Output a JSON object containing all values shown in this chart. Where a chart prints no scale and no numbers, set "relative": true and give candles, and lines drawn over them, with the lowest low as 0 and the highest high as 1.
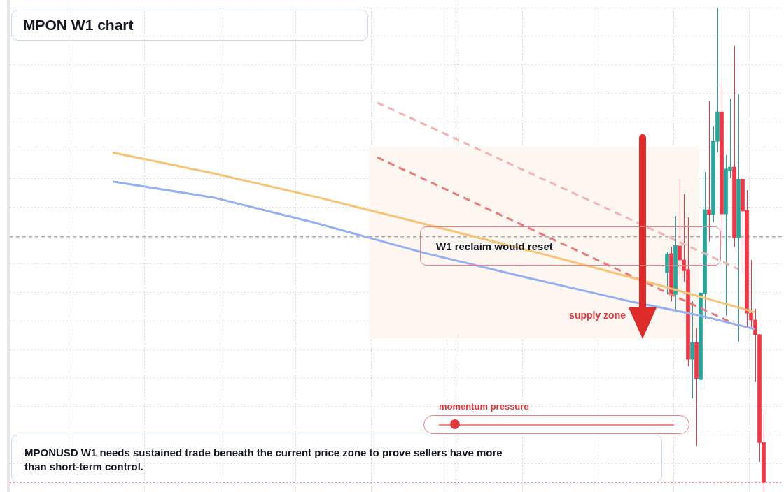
{
  "chart_data": {
    "type": "candlestick",
    "title": "MPON W1 chart",
    "relative": true,
    "grid": true,
    "legend": false,
    "annotations": [
      "W1 reclaim would reset",
      "momentum pressure",
      "MPONUSD W1 needs sustained trade beneath the current price zone to prove sellers have more than short-term control."
    ],
    "categories": [
      null,
      null,
      null,
      null,
      null,
      null,
      null,
      null,
      null,
      null,
      null,
      null,
      null,
      null,
      null,
      null,
      null,
      null,
      null,
      null,
      null,
      null,
      null,
      null,
      null,
      null,
      null,
      null,
      null,
      null,
      null,
      null,
      null,
      null,
      null,
      null,
      null,
      null,
      null,
      null,
      null,
      null,
      null,
      null,
      null,
      null,
      null,
      null,
      null,
      null,
      null,
      null,
      null,
      null,
      null,
      null,
      null,
      null,
      null,
      null,
      null,
      null,
      null,
      null,
      null,
      null,
      null,
      null,
      null,
      null,
      null,
      null,
      null,
      null,
      null,
      null,
      null,
      null,
      null,
      null,
      null,
      null,
      null,
      null,
      null,
      null,
      null,
      null,
      null,
      null,
      null,
      null,
      null,
      null,
      null,
      null,
      null,
      null,
      null,
      null,
      null,
      null,
      null,
      null,
      null,
      null,
      null,
      null,
      null,
      null,
      null,
      null,
      null,
      null,
      null,
      null,
      null,
      null,
      null,
      null,
      null,
      null,
      null,
      null,
      null,
      null,
      null,
      null,
      null,
      null,
      null,
      null,
      null,
      null,
      null,
      null,
      null,
      null,
      null,
      null,
      null,
      null,
      null,
      null,
      null,
      null,
      null,
      null,
      null,
      null,
      null,
      null,
      null,
      null,
      null,
      null,
      null,
      null,
      null,
      null,
      null,
      null,
      null,
      null,
      null,
      null,
      null,
      null,
      null,
      null,
      null,
      null,
      null,
      null,
      null,
      null,
      null,
      null,
      null,
      null,
      null,
      null,
      null,
      null
    ],
    "bands": [
      {
        "axis": "y",
        "from": 0.317,
        "to": 0.712,
        "label": "supply zone",
        "color": "#fdf6f1"
      }
    ],
    "ref_lines": [
      {
        "axis": "y",
        "value": 0.527,
        "color": "#8a8a8a",
        "line_style": "dashed"
      },
      {
        "axis": "y",
        "value": 0.02,
        "color": "#f23645",
        "line_style": "dotted"
      }
    ],
    "series": [
      {
        "type": "line",
        "color": "#f7c477",
        "values": [
          null,
          null,
          null,
          null,
          null,
          null,
          null,
          null,
          null,
          null,
          null,
          null,
          null,
          null,
          null,
          null,
          null,
          null,
          null,
          null,
          null,
          null,
          null,
          null,
          0.701,
          null,
          null,
          null,
          null,
          null,
          null,
          null,
          null,
          null,
          null,
          null,
          null,
          null,
          null,
          null,
          null,
          null,
          null,
          null,
          null,
          null,
          null,
          null,
          0.658,
          null,
          null,
          null,
          null,
          null,
          null,
          null,
          null,
          null,
          null,
          null,
          null,
          null,
          null,
          null,
          null,
          null,
          null,
          null,
          null,
          null,
          null,
          null,
          null,
          0.608,
          null,
          null,
          null,
          null,
          null,
          null,
          null,
          null,
          null,
          null,
          null,
          null,
          null,
          null,
          null,
          null,
          null,
          null,
          null,
          null,
          null,
          null,
          null,
          null,
          0.554,
          null,
          null,
          null,
          null,
          null,
          null,
          null,
          null,
          null,
          null,
          null,
          null,
          null,
          null,
          null,
          null,
          null,
          null,
          null,
          null,
          null,
          null,
          null,
          null,
          0.499,
          null,
          null,
          null,
          null,
          null,
          null,
          null,
          null,
          null,
          null,
          null,
          null,
          null,
          null,
          null,
          null,
          null,
          null,
          null,
          null,
          null,
          null,
          null,
          null,
          0.442,
          null,
          null,
          null,
          null,
          null,
          null,
          null,
          null,
          null,
          null,
          null,
          null,
          null,
          null,
          null,
          0.403,
          null,
          null,
          null,
          null,
          null,
          null,
          null,
          null,
          null,
          null,
          null,
          null,
          0.371,
          null,
          null,
          null,
          null,
          null,
          null
        ]
      },
      {
        "type": "line",
        "color": "#94b0f3",
        "values": [
          null,
          null,
          null,
          null,
          null,
          null,
          null,
          null,
          null,
          null,
          null,
          null,
          null,
          null,
          null,
          null,
          null,
          null,
          null,
          null,
          null,
          null,
          null,
          null,
          0.641,
          null,
          null,
          null,
          null,
          null,
          null,
          null,
          null,
          null,
          null,
          null,
          null,
          null,
          null,
          null,
          null,
          null,
          null,
          null,
          null,
          null,
          null,
          null,
          0.608,
          null,
          null,
          null,
          null,
          null,
          null,
          null,
          null,
          null,
          null,
          null,
          null,
          null,
          null,
          null,
          null,
          null,
          null,
          null,
          null,
          null,
          null,
          null,
          null,
          0.554,
          null,
          null,
          null,
          null,
          null,
          null,
          null,
          null,
          null,
          null,
          null,
          null,
          null,
          null,
          null,
          null,
          null,
          null,
          null,
          null,
          null,
          null,
          null,
          null,
          0.494,
          null,
          null,
          null,
          null,
          null,
          null,
          null,
          null,
          null,
          null,
          null,
          null,
          null,
          null,
          null,
          null,
          null,
          null,
          null,
          null,
          null,
          null,
          null,
          null,
          0.442,
          null,
          null,
          null,
          null,
          null,
          null,
          null,
          null,
          null,
          null,
          null,
          null,
          null,
          null,
          null,
          null,
          null,
          null,
          null,
          null,
          null,
          null,
          null,
          null,
          0.392,
          null,
          null,
          null,
          null,
          null,
          null,
          null,
          null,
          null,
          null,
          null,
          null,
          null,
          null,
          null,
          0.364,
          null,
          null,
          null,
          null,
          null,
          null,
          null,
          null,
          null,
          null,
          null,
          null,
          0.336,
          null,
          null,
          null,
          null,
          null,
          null
        ]
      },
      {
        "type": "line",
        "color": "#f4b3b3",
        "line_style": "dashed",
        "values": [
          null,
          null,
          null,
          null,
          null,
          null,
          null,
          null,
          null,
          null,
          null,
          null,
          null,
          null,
          null,
          null,
          null,
          null,
          null,
          null,
          null,
          null,
          null,
          null,
          null,
          null,
          null,
          null,
          null,
          null,
          null,
          null,
          null,
          null,
          null,
          null,
          null,
          null,
          null,
          null,
          null,
          null,
          null,
          null,
          null,
          null,
          null,
          null,
          null,
          null,
          null,
          null,
          null,
          null,
          null,
          null,
          null,
          null,
          null,
          null,
          null,
          null,
          null,
          null,
          null,
          null,
          null,
          null,
          null,
          null,
          null,
          null,
          null,
          null,
          null,
          null,
          null,
          null,
          null,
          null,
          null,
          null,
          null,
          null,
          null,
          null,
          null,
          0.804,
          null,
          null,
          null,
          null,
          null,
          null,
          null,
          null,
          null,
          null,
          null,
          null,
          null,
          null,
          null,
          null,
          null,
          null,
          null,
          null,
          null,
          null,
          null,
          null,
          null,
          null,
          null,
          null,
          null,
          null,
          null,
          null,
          null,
          null,
          null,
          null,
          null,
          null,
          null,
          null,
          null,
          null,
          null,
          null,
          null,
          null,
          null,
          null,
          null,
          null,
          null,
          null,
          null,
          null,
          null,
          null,
          null,
          null,
          null,
          null,
          null,
          null,
          null,
          null,
          null,
          null,
          null,
          null,
          null,
          null,
          null,
          null,
          null,
          null,
          null,
          null,
          null,
          null,
          null,
          null,
          null,
          null,
          null,
          null,
          null,
          0.46,
          null,
          null,
          null,
          null,
          null,
          null,
          null,
          null,
          null,
          null
        ]
      },
      {
        "type": "line",
        "color": "#e97b7c",
        "line_style": "dashed",
        "values": [
          null,
          null,
          null,
          null,
          null,
          null,
          null,
          null,
          null,
          null,
          null,
          null,
          null,
          null,
          null,
          null,
          null,
          null,
          null,
          null,
          null,
          null,
          null,
          null,
          null,
          null,
          null,
          null,
          null,
          null,
          null,
          null,
          null,
          null,
          null,
          null,
          null,
          null,
          null,
          null,
          null,
          null,
          null,
          null,
          null,
          null,
          null,
          null,
          null,
          null,
          null,
          null,
          null,
          null,
          null,
          null,
          null,
          null,
          null,
          null,
          null,
          null,
          null,
          null,
          null,
          null,
          null,
          null,
          null,
          null,
          null,
          null,
          null,
          null,
          null,
          null,
          null,
          null,
          null,
          null,
          null,
          null,
          null,
          null,
          null,
          null,
          null,
          0.691,
          null,
          null,
          null,
          null,
          null,
          null,
          null,
          null,
          null,
          null,
          null,
          null,
          null,
          null,
          null,
          null,
          null,
          null,
          null,
          null,
          null,
          null,
          null,
          null,
          null,
          null,
          null,
          null,
          null,
          null,
          null,
          null,
          null,
          null,
          null,
          null,
          null,
          null,
          null,
          null,
          null,
          null,
          null,
          null,
          null,
          null,
          null,
          null,
          null,
          null,
          null,
          null,
          null,
          null,
          null,
          null,
          null,
          null,
          null,
          null,
          null,
          null,
          null,
          null,
          null,
          null,
          null,
          null,
          null,
          null,
          null,
          null,
          null,
          null,
          null,
          null,
          null,
          null,
          null,
          null,
          null,
          null,
          null,
          null,
          null,
          0.343,
          null,
          null,
          null,
          null,
          null,
          null,
          null,
          null,
          null,
          null
        ]
      },
      {
        "type": "candlestick",
        "colors": [
          null,
          null,
          null,
          null,
          null,
          null,
          null,
          null,
          null,
          null,
          null,
          null,
          null,
          null,
          null,
          null,
          null,
          null,
          null,
          null,
          null,
          null,
          null,
          null,
          null,
          null,
          null,
          null,
          null,
          null,
          null,
          null,
          null,
          null,
          null,
          null,
          null,
          null,
          null,
          null,
          null,
          null,
          null,
          null,
          null,
          null,
          null,
          null,
          null,
          null,
          null,
          null,
          null,
          null,
          null,
          null,
          null,
          null,
          null,
          null,
          null,
          null,
          null,
          null,
          null,
          null,
          null,
          null,
          null,
          null,
          null,
          null,
          null,
          null,
          null,
          null,
          null,
          null,
          null,
          null,
          null,
          null,
          null,
          null,
          null,
          null,
          null,
          null,
          null,
          null,
          null,
          null,
          null,
          null,
          null,
          null,
          null,
          null,
          null,
          null,
          null,
          null,
          null,
          null,
          null,
          null,
          null,
          null,
          null,
          null,
          null,
          null,
          null,
          null,
          null,
          null,
          null,
          null,
          null,
          null,
          null,
          null,
          null,
          null,
          null,
          null,
          null,
          null,
          null,
          null,
          null,
          null,
          null,
          null,
          null,
          null,
          null,
          null,
          null,
          null,
          null,
          null,
          null,
          null,
          null,
          null,
          null,
          null,
          null,
          null,
          null,
          null,
          null,
          null,
          null,
          null,
          "#26a69a",
          "#f23645",
          "#26a69a",
          "#f23645",
          "#f23645",
          "#f23645",
          "#26a69a",
          "#f23645",
          "#26a69a",
          "#26a69a",
          "#f23645",
          "#26a69a",
          "#26a69a",
          "#f23645",
          "#26a69a",
          "#26a69a",
          "#f23645",
          "#26a69a",
          "#f23645",
          "#f23645",
          "#f23645",
          "#f23645",
          "#f23645",
          "#f23645",
          null,
          null,
          null,
          null
        ],
        "ohlc": [
          null,
          null,
          null,
          null,
          null,
          null,
          null,
          null,
          null,
          null,
          null,
          null,
          null,
          null,
          null,
          null,
          null,
          null,
          null,
          null,
          null,
          null,
          null,
          null,
          null,
          null,
          null,
          null,
          null,
          null,
          null,
          null,
          null,
          null,
          null,
          null,
          null,
          null,
          null,
          null,
          null,
          null,
          null,
          null,
          null,
          null,
          null,
          null,
          null,
          null,
          null,
          null,
          null,
          null,
          null,
          null,
          null,
          null,
          null,
          null,
          null,
          null,
          null,
          null,
          null,
          null,
          null,
          null,
          null,
          null,
          null,
          null,
          null,
          null,
          null,
          null,
          null,
          null,
          null,
          null,
          null,
          null,
          null,
          null,
          null,
          null,
          null,
          null,
          null,
          null,
          null,
          null,
          null,
          null,
          null,
          null,
          null,
          null,
          null,
          null,
          null,
          null,
          null,
          null,
          null,
          null,
          null,
          null,
          null,
          null,
          null,
          null,
          null,
          null,
          null,
          null,
          null,
          null,
          null,
          null,
          null,
          null,
          null,
          null,
          null,
          null,
          null,
          null,
          null,
          null,
          null,
          null,
          null,
          null,
          null,
          null,
          null,
          null,
          null,
          null,
          null,
          null,
          null,
          null,
          null,
          null,
          null,
          null,
          null,
          null,
          null,
          null,
          null,
          null,
          null,
          null,
          [
            0.453,
            0.496,
            0.408,
            0.491
          ],
          [
            0.492,
            0.506,
            0.394,
            0.408
          ],
          [
            0.408,
            0.57,
            0.372,
            0.509
          ],
          [
            0.508,
            0.644,
            0.442,
            0.479
          ],
          [
            0.479,
            0.615,
            0.434,
            0.457
          ],
          [
            0.459,
            0.567,
            0.26,
            0.274
          ],
          [
            0.274,
            0.394,
            0.193,
            0.309
          ],
          [
            0.309,
            0.338,
            0.095,
            0.234
          ],
          [
            0.232,
            0.411,
            0.218,
            0.411
          ],
          [
            0.41,
            0.661,
            0.358,
            0.583
          ],
          [
            0.583,
            0.808,
            0.517,
            0.573
          ],
          [
            0.573,
            0.755,
            0.557,
            0.724
          ],
          [
            0.724,
            1,
            0.701,
            0.785
          ],
          [
            0.785,
            0.841,
            0.508,
            0.574
          ],
          [
            0.574,
            0.696,
            0.364,
            0.667
          ],
          [
            0.664,
            0.812,
            0.648,
            0.671
          ],
          [
            0.671,
            0.921,
            0.506,
            0.525
          ],
          [
            0.525,
            0.821,
            0.31,
            0.646
          ],
          [
            0.646,
            0.648,
            0.453,
            0.58
          ],
          [
            0.582,
            0.623,
            0.342,
            0.369
          ],
          [
            0.369,
            0.479,
            0.336,
            0.355
          ],
          [
            0.355,
            0.378,
            0.228,
            0.325
          ],
          [
            0.325,
            0.326,
            0.062,
            0.102
          ],
          [
            0.102,
            0.163,
            0,
            0.02
          ],
          null,
          null,
          null,
          null
        ]
      }
    ]
  }
}
